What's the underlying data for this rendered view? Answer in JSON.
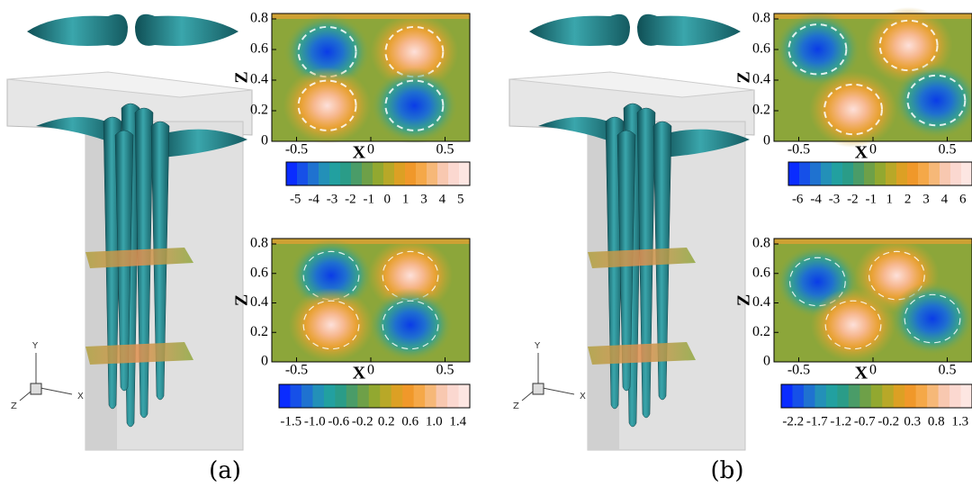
{
  "panels": [
    {
      "label": "(a)",
      "triad": {
        "x": "X",
        "y": "Y",
        "z": "Z"
      },
      "plots": [
        {
          "xlabel": "X",
          "ylabel": "Z",
          "xticks": [
            "-0.5",
            "0",
            "0.5"
          ],
          "yticks": [
            "0",
            "0.2",
            "0.4",
            "0.6",
            "0.8"
          ],
          "colorbar": [
            "-5",
            "-4",
            "-3",
            "-2",
            "-1",
            "0",
            "1",
            "3",
            "4",
            "5"
          ]
        },
        {
          "xlabel": "X",
          "ylabel": "Z",
          "xticks": [
            "-0.5",
            "0",
            "0.5"
          ],
          "yticks": [
            "0",
            "0.2",
            "0.4",
            "0.6",
            "0.8"
          ],
          "colorbar": [
            "-1.5",
            "-1.0",
            "-0.6",
            "-0.2",
            "0.2",
            "0.6",
            "1.0",
            "1.4"
          ]
        }
      ]
    },
    {
      "label": "(b)",
      "triad": {
        "x": "X",
        "y": "Y",
        "z": "Z"
      },
      "plots": [
        {
          "xlabel": "X",
          "ylabel": "Z",
          "xticks": [
            "-0.5",
            "0",
            "0.5"
          ],
          "yticks": [
            "0",
            "0.2",
            "0.4",
            "0.6",
            "0.8"
          ],
          "colorbar": [
            "-6",
            "-4",
            "-3",
            "-2",
            "-1",
            "1",
            "2",
            "3",
            "4",
            "6"
          ]
        },
        {
          "xlabel": "X",
          "ylabel": "Z",
          "xticks": [
            "-0.5",
            "0",
            "0.5"
          ],
          "yticks": [
            "0",
            "0.2",
            "0.4",
            "0.6",
            "0.8"
          ],
          "colorbar": [
            "-2.2",
            "-1.7",
            "-1.2",
            "-0.7",
            "-0.2",
            "0.3",
            "0.8",
            "1.3"
          ]
        }
      ]
    }
  ]
}
